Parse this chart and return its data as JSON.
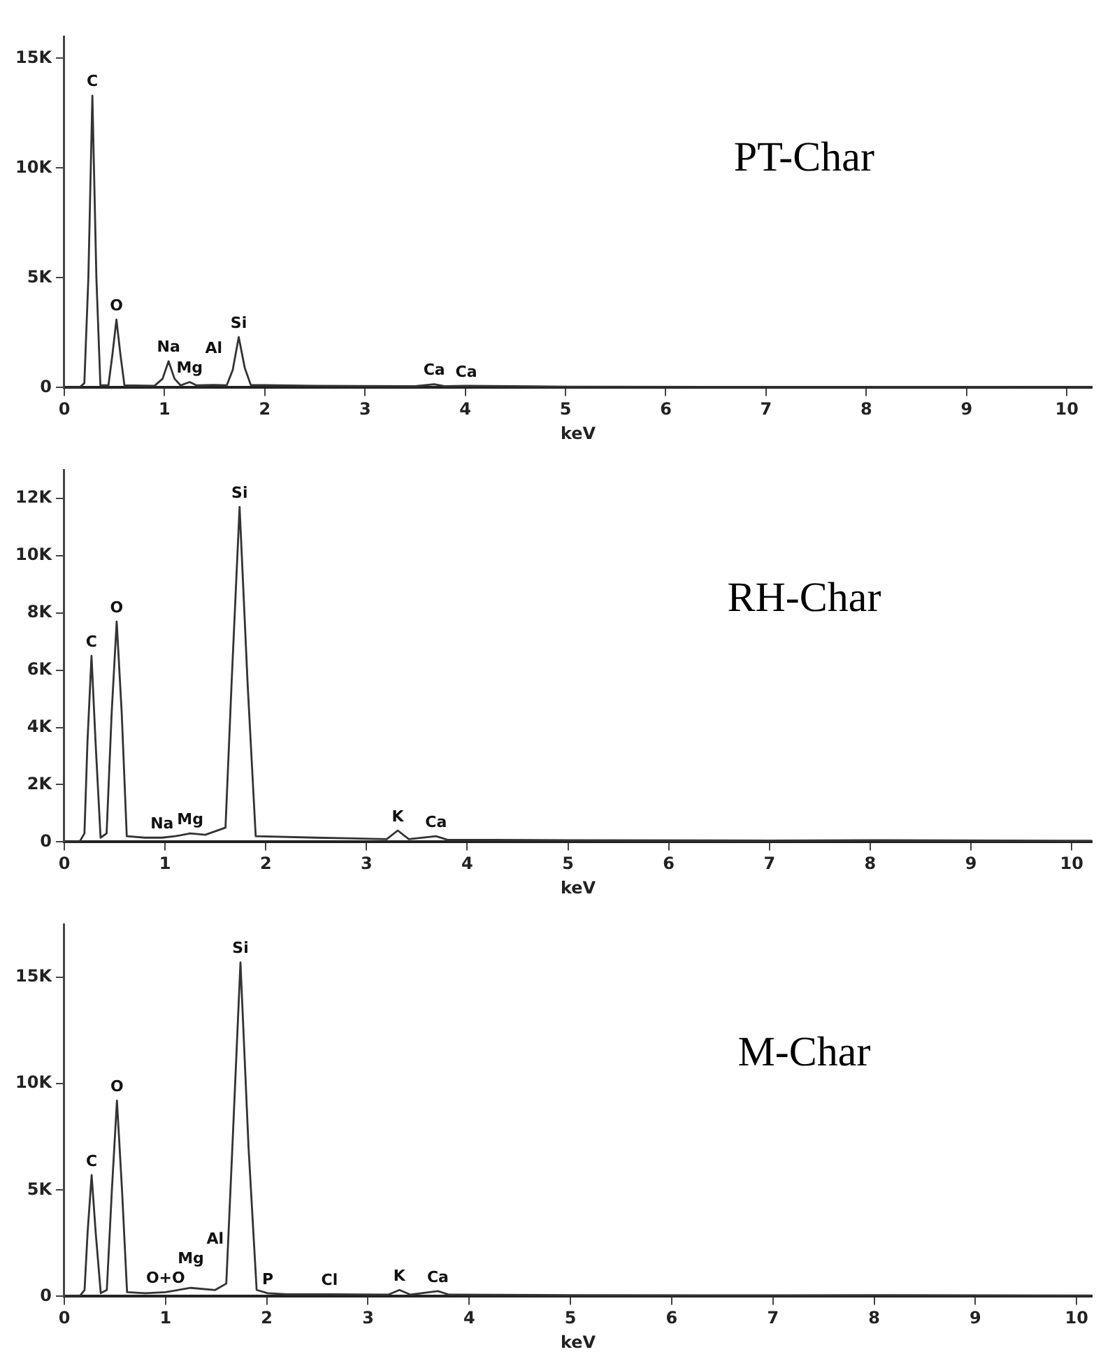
{
  "chart_data": [
    {
      "type": "line",
      "title": "PT-Char",
      "xlabel": "keV",
      "xlim": [
        0,
        10.25
      ],
      "xticks": [
        0,
        1,
        2,
        3,
        4,
        5,
        6,
        7,
        8,
        9,
        10
      ],
      "ylim": [
        0,
        16000
      ],
      "yticks": [
        {
          "value": 0,
          "label": "0"
        },
        {
          "value": 5000,
          "label": "5K"
        },
        {
          "value": 10000,
          "label": "10K"
        },
        {
          "value": 15000,
          "label": "15K"
        }
      ],
      "grid": false,
      "legend": false,
      "marker": "none",
      "line_style": "solid",
      "series": [
        {
          "color": "#333333",
          "x": [
            0,
            0.15,
            0.2,
            0.24,
            0.28,
            0.32,
            0.36,
            0.44,
            0.48,
            0.52,
            0.56,
            0.6,
            0.9,
            0.98,
            1.04,
            1.1,
            1.16,
            1.25,
            1.32,
            1.49,
            1.62,
            1.68,
            1.74,
            1.8,
            1.86,
            2.5,
            3.5,
            3.69,
            3.8,
            4.01,
            5,
            7,
            8,
            10.25
          ],
          "values": [
            0,
            0,
            200,
            5000,
            13300,
            5000,
            100,
            100,
            1500,
            3100,
            1500,
            100,
            80,
            400,
            1200,
            400,
            100,
            250,
            100,
            120,
            100,
            800,
            2300,
            900,
            120,
            80,
            60,
            150,
            60,
            80,
            40,
            30,
            30,
            20
          ]
        }
      ],
      "annotations": [
        {
          "text": "C",
          "x": 0.28,
          "y": 13300
        },
        {
          "text": "O",
          "x": 0.52,
          "y": 3100
        },
        {
          "text": "Na",
          "x": 1.04,
          "y": 1200
        },
        {
          "text": "Mg",
          "x": 1.25,
          "y": 250
        },
        {
          "text": "Al",
          "x": 1.49,
          "y": 120
        },
        {
          "text": "Si",
          "x": 1.74,
          "y": 2300
        },
        {
          "text": "Ca",
          "x": 3.69,
          "y": 150
        },
        {
          "text": "Ca",
          "x": 4.01,
          "y": 80
        }
      ]
    },
    {
      "type": "line",
      "title": "RH-Char",
      "xlabel": "keV",
      "xlim": [
        0,
        10.2
      ],
      "xticks": [
        0,
        1,
        2,
        3,
        4,
        5,
        6,
        7,
        8,
        9,
        10
      ],
      "ylim": [
        0,
        13000
      ],
      "yticks": [
        {
          "value": 0,
          "label": "0"
        },
        {
          "value": 2000,
          "label": "2K"
        },
        {
          "value": 4000,
          "label": "4K"
        },
        {
          "value": 6000,
          "label": "6K"
        },
        {
          "value": 8000,
          "label": "8K"
        },
        {
          "value": 10000,
          "label": "10K"
        },
        {
          "value": 12000,
          "label": "12K"
        }
      ],
      "grid": false,
      "legend": false,
      "marker": "none",
      "line_style": "solid",
      "series": [
        {
          "color": "#333333",
          "x": [
            0,
            0.15,
            0.2,
            0.23,
            0.27,
            0.31,
            0.36,
            0.42,
            0.47,
            0.52,
            0.57,
            0.62,
            0.8,
            0.97,
            1.1,
            1.25,
            1.4,
            1.6,
            1.66,
            1.74,
            1.82,
            1.9,
            2.5,
            3.2,
            3.31,
            3.42,
            3.69,
            3.8,
            5,
            7,
            8,
            10.2
          ],
          "values": [
            0,
            0,
            300,
            3500,
            6500,
            3500,
            150,
            300,
            4500,
            7700,
            4500,
            200,
            150,
            150,
            200,
            300,
            250,
            500,
            5500,
            11700,
            5500,
            200,
            150,
            100,
            400,
            100,
            200,
            80,
            60,
            50,
            60,
            40
          ]
        }
      ],
      "annotations": [
        {
          "text": "C",
          "x": 0.27,
          "y": 6500
        },
        {
          "text": "O",
          "x": 0.52,
          "y": 7700
        },
        {
          "text": "Na",
          "x": 0.97,
          "y": 150
        },
        {
          "text": "Mg",
          "x": 1.25,
          "y": 300
        },
        {
          "text": "Si",
          "x": 1.74,
          "y": 11700
        },
        {
          "text": "K",
          "x": 3.31,
          "y": 400
        },
        {
          "text": "Ca",
          "x": 3.69,
          "y": 200
        }
      ]
    },
    {
      "type": "line",
      "title": "M-Char",
      "xlabel": "keV",
      "xlim": [
        0,
        10.15
      ],
      "xticks": [
        0,
        1,
        2,
        3,
        4,
        5,
        6,
        7,
        8,
        9,
        10
      ],
      "ylim": [
        0,
        17500
      ],
      "yticks": [
        {
          "value": 0,
          "label": "0"
        },
        {
          "value": 5000,
          "label": "5K"
        },
        {
          "value": 10000,
          "label": "10K"
        },
        {
          "value": 15000,
          "label": "15K"
        }
      ],
      "grid": false,
      "legend": false,
      "marker": "none",
      "line_style": "solid",
      "series": [
        {
          "color": "#333333",
          "x": [
            0,
            0.15,
            0.2,
            0.23,
            0.27,
            0.31,
            0.36,
            0.42,
            0.47,
            0.52,
            0.57,
            0.62,
            0.8,
            1.0,
            1.25,
            1.49,
            1.6,
            1.66,
            1.74,
            1.82,
            1.9,
            2.01,
            2.2,
            2.62,
            3.2,
            3.31,
            3.42,
            3.69,
            3.8,
            5,
            7,
            8,
            10.15
          ],
          "values": [
            0,
            0,
            300,
            3000,
            5700,
            3000,
            150,
            300,
            5000,
            9200,
            5000,
            200,
            150,
            200,
            400,
            300,
            600,
            7000,
            15700,
            7000,
            300,
            150,
            100,
            100,
            80,
            300,
            80,
            250,
            80,
            60,
            50,
            60,
            40
          ]
        }
      ],
      "annotations": [
        {
          "text": "C",
          "x": 0.27,
          "y": 5700
        },
        {
          "text": "O",
          "x": 0.52,
          "y": 9200
        },
        {
          "text": "O+O",
          "x": 1.0,
          "y": 200
        },
        {
          "text": "Mg",
          "x": 1.25,
          "y": 400
        },
        {
          "text": "Al",
          "x": 1.49,
          "y": 300
        },
        {
          "text": "Si",
          "x": 1.74,
          "y": 15700
        },
        {
          "text": "P",
          "x": 2.01,
          "y": 150
        },
        {
          "text": "Cl",
          "x": 2.62,
          "y": 100
        },
        {
          "text": "K",
          "x": 3.31,
          "y": 300
        },
        {
          "text": "Ca",
          "x": 3.69,
          "y": 250
        }
      ]
    }
  ]
}
